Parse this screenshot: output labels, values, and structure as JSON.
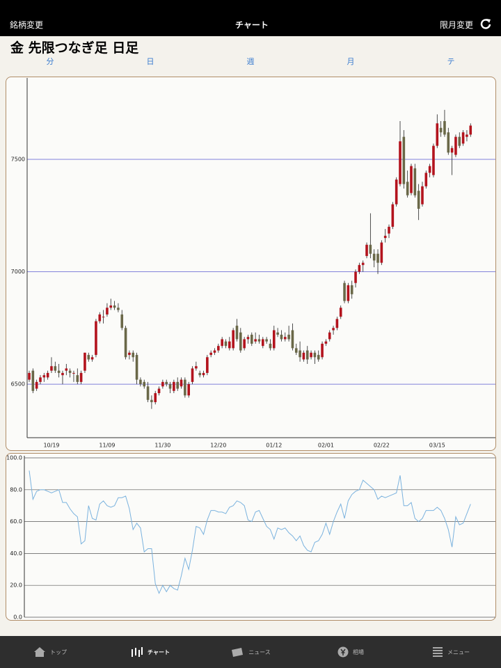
{
  "header": {
    "left": "銘柄変更",
    "center": "チャート",
    "right": "限月変更"
  },
  "title": "金 先限つなぎ足 日足",
  "tabs": [
    "分",
    "日",
    "週",
    "月",
    "テ"
  ],
  "chart_data": [
    {
      "type": "candlestick",
      "categories": [
        null,
        null,
        null,
        null,
        null,
        null,
        "10/19",
        null,
        null,
        null,
        null,
        null,
        null,
        null,
        null,
        null,
        null,
        null,
        null,
        null,
        null,
        "11/09",
        null,
        null,
        null,
        null,
        null,
        null,
        null,
        null,
        null,
        null,
        null,
        null,
        null,
        null,
        "11/30",
        null,
        null,
        null,
        null,
        null,
        null,
        null,
        null,
        null,
        null,
        null,
        null,
        null,
        null,
        "12/20",
        null,
        null,
        null,
        null,
        null,
        null,
        null,
        null,
        null,
        null,
        null,
        null,
        null,
        null,
        "01/12",
        null,
        null,
        null,
        null,
        null,
        null,
        null,
        null,
        null,
        null,
        null,
        null,
        null,
        "02/01",
        null,
        null,
        null,
        null,
        null,
        null,
        null,
        null,
        null,
        null,
        null,
        null,
        null,
        null,
        "02/22",
        null,
        null,
        null,
        null,
        null,
        null,
        null,
        null,
        null,
        null,
        null,
        null,
        null,
        null,
        "03/15",
        null,
        null,
        null,
        null,
        null,
        null,
        null,
        null,
        null
      ],
      "open": [
        6520,
        6560,
        6480,
        6510,
        6530,
        6530,
        6560,
        6580,
        6560,
        6540,
        6560,
        6560,
        6550,
        6540,
        6510,
        6560,
        6630,
        6610,
        6630,
        6780,
        6800,
        6810,
        6840,
        6850,
        6840,
        6810,
        6750,
        6630,
        6640,
        6630,
        6520,
        6510,
        6490,
        6430,
        6420,
        6460,
        6490,
        6510,
        6500,
        6470,
        6510,
        6490,
        6520,
        6450,
        6510,
        6570,
        6550,
        6540,
        6550,
        6630,
        6640,
        6650,
        6670,
        6690,
        6660,
        6660,
        6760,
        6730,
        6660,
        6700,
        6720,
        6690,
        6700,
        6670,
        6700,
        6680,
        6660,
        6730,
        6720,
        6700,
        6720,
        6740,
        6660,
        6650,
        6610,
        6650,
        6620,
        6640,
        6630,
        6620,
        6680,
        6700,
        6740,
        6750,
        6800,
        6950,
        6870,
        6940,
        6950,
        7000,
        7030,
        7070,
        7120,
        7080,
        7080,
        7040,
        7150,
        7170,
        7200,
        7300,
        7390,
        7600,
        7400,
        7350,
        7460,
        7360,
        7300,
        7380,
        7440,
        7430,
        7560,
        7640,
        7670,
        7620,
        7530,
        7520,
        7600,
        7570,
        7600,
        7610
      ],
      "high": [
        6560,
        6570,
        6520,
        6540,
        6550,
        6560,
        6620,
        6600,
        6590,
        6560,
        6590,
        6570,
        6560,
        6570,
        6560,
        6640,
        6640,
        6630,
        6790,
        6820,
        6830,
        6860,
        6880,
        6870,
        6860,
        6830,
        6760,
        6650,
        6650,
        6640,
        6530,
        6520,
        6510,
        6450,
        6470,
        6490,
        6520,
        6520,
        6510,
        6520,
        6530,
        6530,
        6530,
        6510,
        6580,
        6600,
        6560,
        6560,
        6630,
        6650,
        6660,
        6680,
        6710,
        6700,
        6710,
        6750,
        6790,
        6750,
        6710,
        6720,
        6730,
        6730,
        6720,
        6710,
        6710,
        6700,
        6760,
        6750,
        6740,
        6730,
        6760,
        6770,
        6680,
        6690,
        6650,
        6670,
        6650,
        6650,
        6650,
        6690,
        6700,
        6740,
        6760,
        6800,
        6850,
        6960,
        6950,
        6960,
        7010,
        7040,
        7050,
        7130,
        7260,
        7100,
        7100,
        7140,
        7190,
        7210,
        7310,
        7420,
        7670,
        7630,
        7450,
        7480,
        7480,
        7390,
        7400,
        7450,
        7480,
        7570,
        7700,
        7670,
        7720,
        7640,
        7560,
        7610,
        7620,
        7630,
        7630,
        7660
      ],
      "low": [
        6510,
        6460,
        6470,
        6500,
        6510,
        6520,
        6550,
        6550,
        6530,
        6500,
        6540,
        6530,
        6510,
        6500,
        6500,
        6550,
        6600,
        6600,
        6620,
        6770,
        6770,
        6800,
        6830,
        6830,
        6820,
        6740,
        6610,
        6610,
        6600,
        6500,
        6490,
        6480,
        6420,
        6390,
        6410,
        6450,
        6480,
        6490,
        6460,
        6460,
        6470,
        6480,
        6440,
        6440,
        6500,
        6560,
        6530,
        6530,
        6540,
        6620,
        6630,
        6640,
        6660,
        6660,
        6650,
        6650,
        6690,
        6640,
        6650,
        6680,
        6670,
        6680,
        6680,
        6660,
        6680,
        6650,
        6650,
        6710,
        6690,
        6690,
        6690,
        6650,
        6630,
        6600,
        6600,
        6590,
        6610,
        6590,
        6600,
        6610,
        6670,
        6690,
        6720,
        6740,
        6790,
        6860,
        6860,
        6880,
        6930,
        6990,
        7000,
        7060,
        7060,
        7020,
        6990,
        7030,
        7130,
        7150,
        7190,
        7290,
        7380,
        7370,
        7330,
        7340,
        7330,
        7230,
        7290,
        7370,
        7420,
        7420,
        7550,
        7600,
        7600,
        7520,
        7430,
        7510,
        7550,
        7560,
        7580,
        7600
      ],
      "close": [
        6550,
        6470,
        6510,
        6530,
        6540,
        6550,
        6580,
        6560,
        6550,
        6550,
        6570,
        6550,
        6550,
        6510,
        6550,
        6640,
        6610,
        6620,
        6780,
        6810,
        6800,
        6840,
        6850,
        6840,
        6830,
        6750,
        6620,
        6640,
        6620,
        6520,
        6500,
        6490,
        6430,
        6420,
        6460,
        6480,
        6510,
        6500,
        6480,
        6510,
        6480,
        6520,
        6450,
        6500,
        6570,
        6580,
        6540,
        6550,
        6620,
        6640,
        6650,
        6670,
        6700,
        6670,
        6690,
        6740,
        6700,
        6650,
        6700,
        6710,
        6680,
        6700,
        6690,
        6700,
        6690,
        6660,
        6740,
        6720,
        6700,
        6710,
        6700,
        6660,
        6640,
        6620,
        6640,
        6610,
        6640,
        6620,
        6610,
        6680,
        6690,
        6730,
        6750,
        6790,
        6840,
        6870,
        6940,
        6900,
        7000,
        7030,
        7040,
        7120,
        7080,
        7050,
        7040,
        7130,
        7160,
        7200,
        7300,
        7410,
        7580,
        7390,
        7340,
        7470,
        7340,
        7280,
        7380,
        7440,
        7470,
        7560,
        7660,
        7620,
        7610,
        7530,
        7550,
        7600,
        7560,
        7620,
        7610,
        7650
      ],
      "up_color": "#b3131d",
      "down_color": "#6a6848",
      "ylim": [
        6262,
        7862
      ],
      "yticks": [
        6500,
        7000,
        7500
      ],
      "grid": true,
      "grid_color": "#5a5ad0"
    },
    {
      "type": "line",
      "values": [
        92,
        74,
        79,
        80,
        80,
        79,
        78,
        79,
        80,
        72,
        72,
        68,
        65,
        63,
        46,
        48,
        70,
        62,
        61,
        71,
        73,
        70,
        69,
        70,
        75,
        75,
        76,
        68,
        55,
        59,
        56,
        41,
        43,
        43,
        21,
        15,
        20,
        16,
        20,
        18,
        17,
        26,
        37,
        30,
        42,
        57,
        56,
        52,
        61,
        67,
        67,
        66,
        66,
        65,
        69,
        70,
        73,
        72,
        70,
        61,
        60,
        66,
        67,
        62,
        57,
        55,
        49,
        56,
        55,
        56,
        53,
        51,
        48,
        51,
        45,
        42,
        41,
        47,
        48,
        52,
        59,
        52,
        60,
        66,
        71,
        62,
        73,
        77,
        79,
        80,
        86,
        84,
        82,
        80,
        74,
        76,
        75,
        76,
        77,
        78,
        89,
        70,
        70,
        72,
        62,
        60,
        62,
        67,
        67,
        67,
        69,
        67,
        62,
        55,
        44,
        63,
        58,
        59,
        65,
        71
      ],
      "color": "#7ab2de",
      "ylim": [
        0,
        100
      ],
      "yticks": [
        {
          "value": 0,
          "label": "0.0"
        },
        {
          "value": 20,
          "label": "20.0"
        },
        {
          "value": 40,
          "label": "40.0"
        },
        {
          "value": 60,
          "label": "60.0"
        },
        {
          "value": 80,
          "label": "80.0"
        },
        {
          "value": 100,
          "label": "100.0"
        }
      ],
      "grid": true,
      "grid_color": "#555"
    }
  ],
  "tabbar": [
    "トップ",
    "チャート",
    "ニュース",
    "相場",
    "メニュー"
  ]
}
